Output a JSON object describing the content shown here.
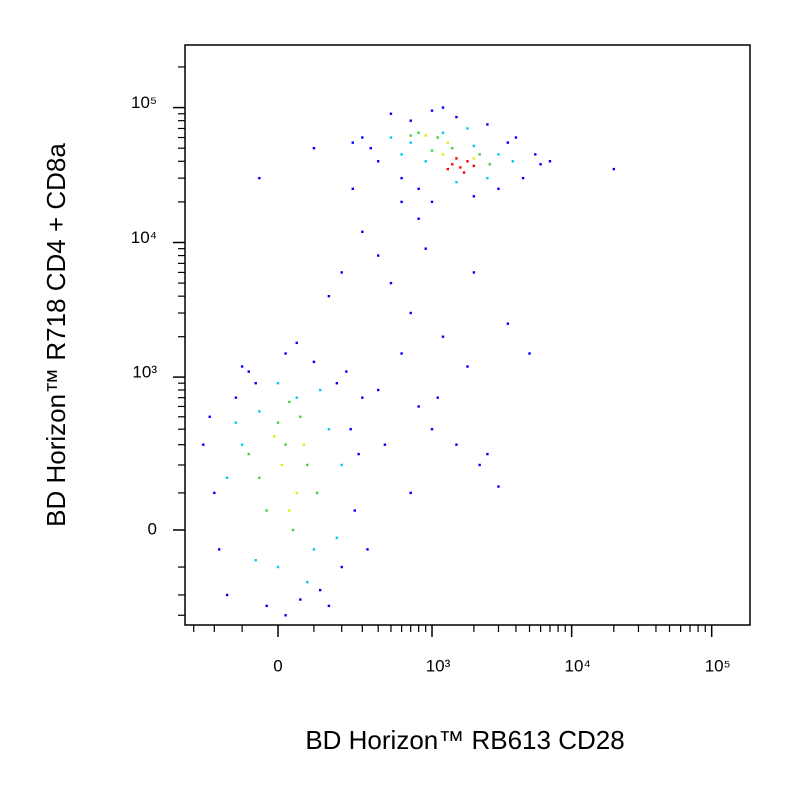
{
  "chart_data": {
    "type": "scatter",
    "x_label": "BD Horizon™ RB613 CD28",
    "y_label": "BD Horizon™ R718  CD4 + CD8a",
    "xscale": "biexponential",
    "yscale": "biexponential",
    "xlim": [
      -352,
      187800
    ],
    "ylim": [
      -360,
      291000
    ],
    "xticks": [
      0,
      {
        "value": 1000,
        "label": "10³"
      },
      {
        "value": 10000,
        "label": "10⁴"
      },
      {
        "value": 100000,
        "label": "10⁵"
      }
    ],
    "yticks": [
      0,
      {
        "value": 1000,
        "label": "10³"
      },
      {
        "value": 10000,
        "label": "10⁴"
      },
      {
        "value": 100000,
        "label": "10⁵"
      }
    ],
    "xminorticks": [
      -300,
      -200,
      -100,
      100,
      200,
      300,
      400,
      500,
      600,
      700,
      800,
      900,
      2000,
      3000,
      4000,
      5000,
      6000,
      7000,
      8000,
      9000,
      20000,
      30000,
      40000,
      50000,
      60000,
      70000,
      80000,
      90000
    ],
    "yminorticks": [
      -300,
      -200,
      -100,
      100,
      200,
      300,
      400,
      500,
      600,
      700,
      800,
      900,
      2000,
      3000,
      4000,
      5000,
      6000,
      7000,
      8000,
      9000,
      20000,
      30000,
      40000,
      50000,
      60000,
      70000,
      80000,
      90000,
      200000
    ],
    "series": [
      {
        "color": "#0000ff",
        "x": [
          -200,
          -150,
          -250,
          -120,
          -80,
          -30,
          20,
          60,
          120,
          200,
          260,
          240,
          300,
          180,
          100,
          20,
          -60,
          -180,
          -220,
          150,
          280,
          330,
          50,
          -100,
          220,
          400,
          600,
          800,
          1000,
          1500,
          2500,
          3000,
          1200,
          700,
          500,
          400,
          300,
          200,
          150,
          900,
          2000,
          3500,
          5000,
          1800,
          600,
          250,
          800,
          -50,
          100,
          1100,
          2200,
          700,
          450,
          300,
          400,
          250,
          500,
          700,
          1000,
          1500,
          2500,
          4000,
          5500,
          6000,
          20000,
          4500,
          3000,
          2000,
          1000,
          600,
          350,
          800,
          1200,
          3500,
          7000
        ],
        "y": [
          100,
          -200,
          300,
          700,
          1100,
          -250,
          -300,
          -220,
          -180,
          -100,
          50,
          400,
          700,
          900,
          1300,
          1500,
          900,
          -50,
          500,
          -250,
          250,
          -50,
          1800,
          1200,
          1100,
          800,
          1500,
          600,
          400,
          300,
          250,
          120,
          2000,
          3000,
          5000,
          8000,
          12000,
          6000,
          4000,
          9000,
          6000,
          2500,
          1500,
          1200,
          20000,
          25000,
          15000,
          30000,
          50000,
          700,
          200,
          100,
          300,
          60000,
          40000,
          55000,
          90000,
          80000,
          95000,
          85000,
          75000,
          60000,
          45000,
          38000,
          35000,
          30000,
          25000,
          22000,
          20000,
          30000,
          50000,
          25000,
          100000,
          55000,
          40000
        ]
      },
      {
        "color": "#00c8ff",
        "x": [
          -100,
          0,
          100,
          150,
          50,
          -50,
          200,
          -150,
          0,
          120,
          80,
          -60,
          180,
          -120,
          500,
          700,
          1200,
          2000,
          3000,
          2500,
          1500,
          900,
          3800,
          600,
          1800
        ],
        "y": [
          300,
          -100,
          -50,
          400,
          700,
          550,
          200,
          150,
          900,
          800,
          -150,
          -80,
          -20,
          450,
          60000,
          55000,
          65000,
          52000,
          45000,
          30000,
          28000,
          40000,
          40000,
          45000,
          70000
        ]
      },
      {
        "color": "#40d040",
        "x": [
          -50,
          20,
          80,
          0,
          60,
          -30,
          40,
          110,
          -80,
          30,
          800,
          1100,
          1400,
          2200,
          1000,
          2600,
          700
        ],
        "y": [
          150,
          300,
          200,
          450,
          500,
          50,
          0,
          100,
          250,
          650,
          65000,
          60000,
          50000,
          45000,
          48000,
          38000,
          62000
        ]
      },
      {
        "color": "#e8e800",
        "x": [
          10,
          50,
          -10,
          70,
          30,
          900,
          1200,
          2000,
          1300
        ],
        "y": [
          200,
          100,
          350,
          300,
          50,
          62000,
          45000,
          42000,
          55000
        ]
      },
      {
        "color": "#ff0000",
        "x": [
          1400,
          1600,
          1800,
          1500,
          2000,
          1700,
          1300
        ],
        "y": [
          38000,
          36000,
          40000,
          42000,
          37000,
          33000,
          35000
        ]
      }
    ]
  }
}
